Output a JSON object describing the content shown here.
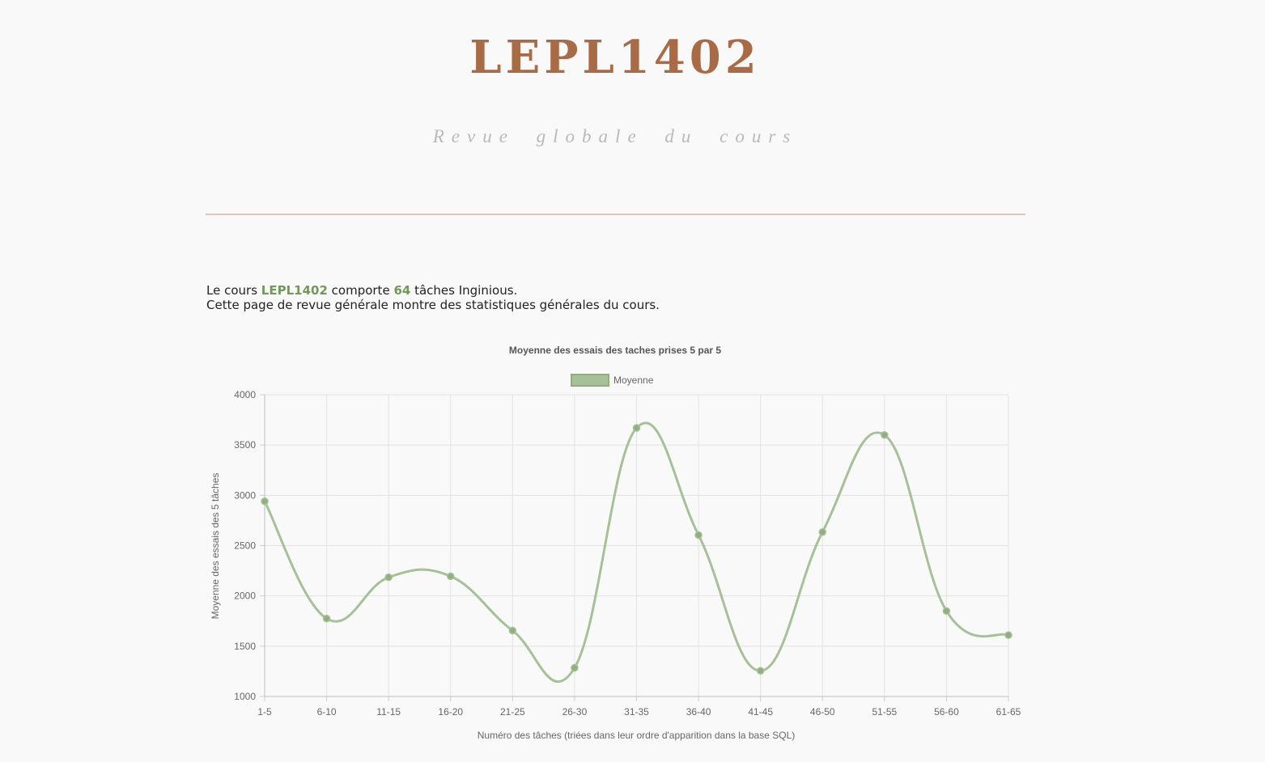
{
  "header": {
    "title": "LEPL1402",
    "subtitle": "Revue globale du cours"
  },
  "intro": {
    "line1_prefix": "Le cours ",
    "course_code": "LEPL1402",
    "line1_middle": " comporte ",
    "task_count": "64",
    "line1_suffix": " tâches Inginious.",
    "line2": "Cette page de revue générale montre des statistiques générales du cours."
  },
  "colors": {
    "accent": "#a96b45",
    "highlight": "#6f9a57",
    "series_line": "#a6c197",
    "series_point": "#8fb07e"
  },
  "chart_data": {
    "type": "line",
    "title": "Moyenne des essais des taches prises 5 par 5",
    "xlabel": "Numéro des tâches (triées dans leur ordre d'apparition dans la base SQL)",
    "ylabel": "Moyenne des essais des 5 tâches",
    "categories": [
      "1-5",
      "6-10",
      "11-15",
      "16-20",
      "21-25",
      "26-30",
      "31-35",
      "36-40",
      "41-45",
      "46-50",
      "51-55",
      "56-60",
      "61-65"
    ],
    "series": [
      {
        "name": "Moyenne",
        "values": [
          2940,
          1775,
          2185,
          2195,
          1655,
          1285,
          3670,
          2605,
          1255,
          2635,
          3600,
          1850,
          1610
        ]
      }
    ],
    "ylim": [
      1000,
      4000
    ],
    "yticks": [
      1000,
      1500,
      2000,
      2500,
      3000,
      3500,
      4000
    ],
    "grid": true,
    "legend_position": "top"
  }
}
